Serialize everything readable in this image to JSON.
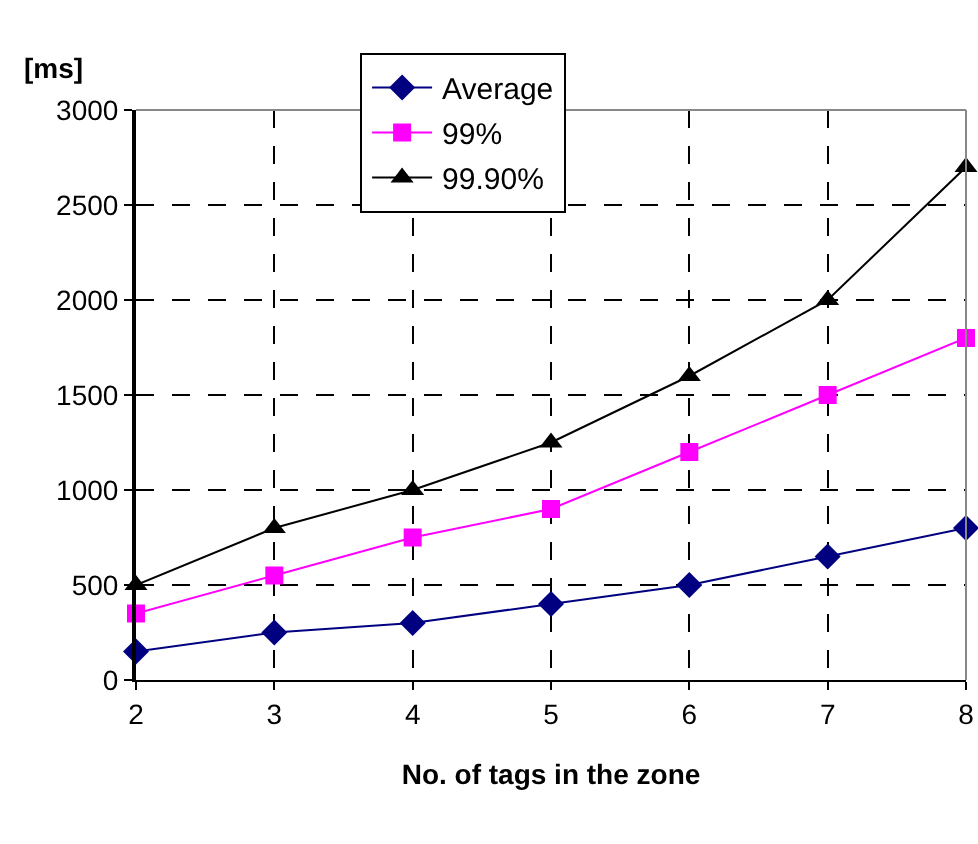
{
  "chart_data": {
    "type": "line",
    "xlabel": "No. of tags in the zone",
    "ylabel": "[ms]",
    "x": [
      2,
      3,
      4,
      5,
      6,
      7,
      8
    ],
    "series": [
      {
        "name": "Average",
        "color": "#000080",
        "marker": "diamond",
        "values": [
          150,
          250,
          300,
          400,
          500,
          650,
          800
        ]
      },
      {
        "name": "99%",
        "color": "#ff00ff",
        "marker": "square",
        "values": [
          350,
          550,
          750,
          900,
          1200,
          1500,
          1800
        ]
      },
      {
        "name": "99.90%",
        "color": "#000000",
        "marker": "triangle",
        "values": [
          500,
          800,
          1000,
          1250,
          1600,
          2000,
          2700
        ]
      }
    ],
    "xlim": [
      2,
      8
    ],
    "xticks": [
      2,
      3,
      4,
      5,
      6,
      7,
      8
    ],
    "ylim": [
      0,
      3000
    ],
    "yticks": [
      0,
      500,
      1000,
      1500,
      2000,
      2500,
      3000
    ],
    "grid": true,
    "legend": "top",
    "line_style": "solid"
  }
}
